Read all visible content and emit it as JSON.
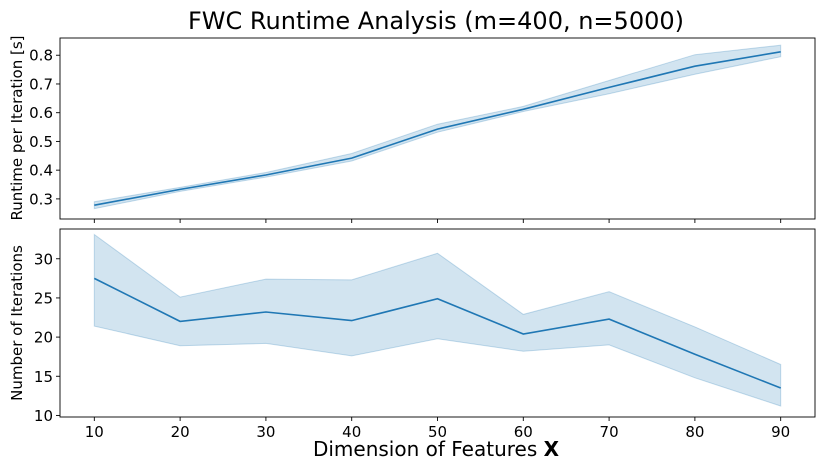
{
  "chart_data": [
    {
      "type": "line",
      "title": "FWC Runtime Analysis (m=400, n=5000)",
      "xlabel": "Dimension of Features X",
      "ylabel": "Runtime per Iteration [s]",
      "x": [
        10,
        20,
        30,
        40,
        50,
        60,
        70,
        80,
        90
      ],
      "xlim": [
        6,
        94
      ],
      "ylim": [
        0.23,
        0.86
      ],
      "yticks": [
        0.3,
        0.4,
        0.5,
        0.6,
        0.7,
        0.8
      ],
      "grid": false,
      "color": "#1f77b4",
      "band_color": "#1f77b4",
      "series": [
        {
          "values": [
            0.278,
            0.333,
            0.383,
            0.442,
            0.543,
            0.612,
            0.688,
            0.762,
            0.812
          ],
          "lower": [
            0.266,
            0.326,
            0.376,
            0.432,
            0.532,
            0.604,
            0.666,
            0.734,
            0.795
          ],
          "upper": [
            0.29,
            0.34,
            0.392,
            0.458,
            0.56,
            0.622,
            0.712,
            0.802,
            0.835
          ]
        }
      ]
    },
    {
      "type": "line",
      "title": "",
      "xlabel": "Dimension of Features X",
      "ylabel": "Number of Iterations",
      "x": [
        10,
        20,
        30,
        40,
        50,
        60,
        70,
        80,
        90
      ],
      "xticks": [
        10,
        20,
        30,
        40,
        50,
        60,
        70,
        80,
        90
      ],
      "xlim": [
        6,
        94
      ],
      "ylim": [
        9.8,
        33.8
      ],
      "yticks": [
        10,
        15,
        20,
        25,
        30
      ],
      "grid": false,
      "color": "#1f77b4",
      "band_color": "#1f77b4",
      "series": [
        {
          "values": [
            27.5,
            22.0,
            23.2,
            22.1,
            24.9,
            20.4,
            22.3,
            17.8,
            13.5
          ],
          "lower": [
            21.4,
            18.9,
            19.2,
            17.6,
            19.8,
            18.2,
            19.0,
            14.8,
            11.2
          ],
          "upper": [
            33.1,
            25.1,
            27.4,
            27.3,
            30.7,
            22.9,
            25.8,
            21.3,
            16.5
          ]
        }
      ]
    }
  ],
  "figure": {
    "title": "FWC Runtime Analysis (m=400, n=5000)",
    "xlabel_main": "Dimension of Features ",
    "xlabel_bold": "X"
  }
}
